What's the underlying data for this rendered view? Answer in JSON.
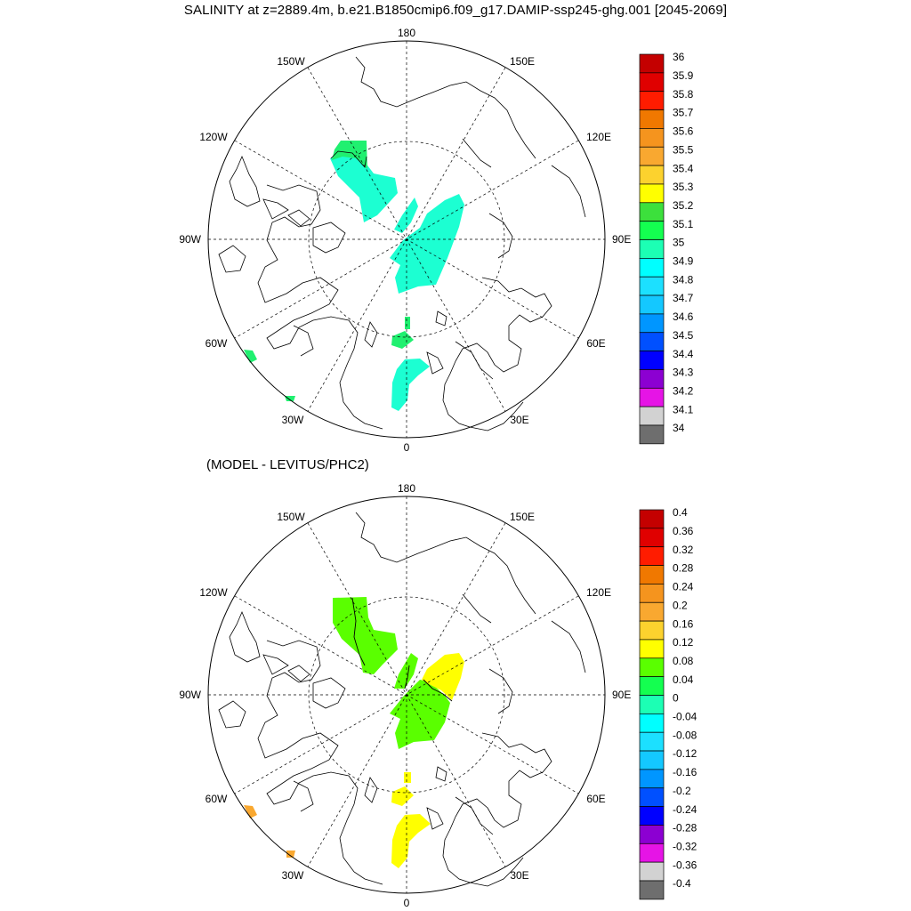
{
  "title": "SALINITY at z=2889.4m, b.e21.B1850cmip6.f09_g17.DAMIP-ssp245-ghg.001 [2045-2069]",
  "subtitle": "(MODEL - LEVITUS/PHC2)",
  "longitude_labels": {
    "top": "180",
    "bottom": "0",
    "left": "90W",
    "right": "90E",
    "upper_left_1": "150W",
    "upper_left_2": "120W",
    "upper_right_1": "150E",
    "upper_right_2": "120E",
    "lower_left_1": "60W",
    "lower_left_2": "30W",
    "lower_right_1": "60E",
    "lower_right_2": "30E"
  },
  "colorbar1": {
    "labels": [
      "36",
      "35.9",
      "35.8",
      "35.7",
      "35.6",
      "35.5",
      "35.4",
      "35.3",
      "35.2",
      "35.1",
      "35",
      "34.9",
      "34.8",
      "34.7",
      "34.6",
      "34.5",
      "34.4",
      "34.3",
      "34.2",
      "34.1",
      "34"
    ],
    "colors": [
      "#c40000",
      "#e00000",
      "#ff1c00",
      "#f07800",
      "#f5941e",
      "#f9a830",
      "#fcd22e",
      "#ffff00",
      "#3ce03c",
      "#14ff50",
      "#1cffb4",
      "#00ffff",
      "#1ce0ff",
      "#14c8ff",
      "#0096ff",
      "#0050ff",
      "#0000ff",
      "#8c00d2",
      "#e614e6",
      "#d2d2d2",
      "#6e6e6e"
    ]
  },
  "colorbar2": {
    "labels": [
      "0.4",
      "0.36",
      "0.32",
      "0.28",
      "0.24",
      "0.2",
      "0.16",
      "0.12",
      "0.08",
      "0.04",
      "0",
      "-0.04",
      "-0.08",
      "-0.12",
      "-0.16",
      "-0.2",
      "-0.24",
      "-0.28",
      "-0.32",
      "-0.36",
      "-0.4"
    ],
    "colors": [
      "#c40000",
      "#e00000",
      "#ff1c00",
      "#f07800",
      "#f5941e",
      "#f9a830",
      "#fcd22e",
      "#ffff00",
      "#5aff00",
      "#14ff50",
      "#1cffb4",
      "#00ffff",
      "#1ce0ff",
      "#14c8ff",
      "#0096ff",
      "#0050ff",
      "#0000ff",
      "#8c00d2",
      "#e614e6",
      "#d2d2d2",
      "#6e6e6e"
    ]
  },
  "panel1_fill": {
    "main": "#1cffd2",
    "green": "#20f070"
  },
  "panel2_fill": {
    "green": "#5aff00",
    "yellow": "#ffff00",
    "orange": "#f9a830"
  }
}
